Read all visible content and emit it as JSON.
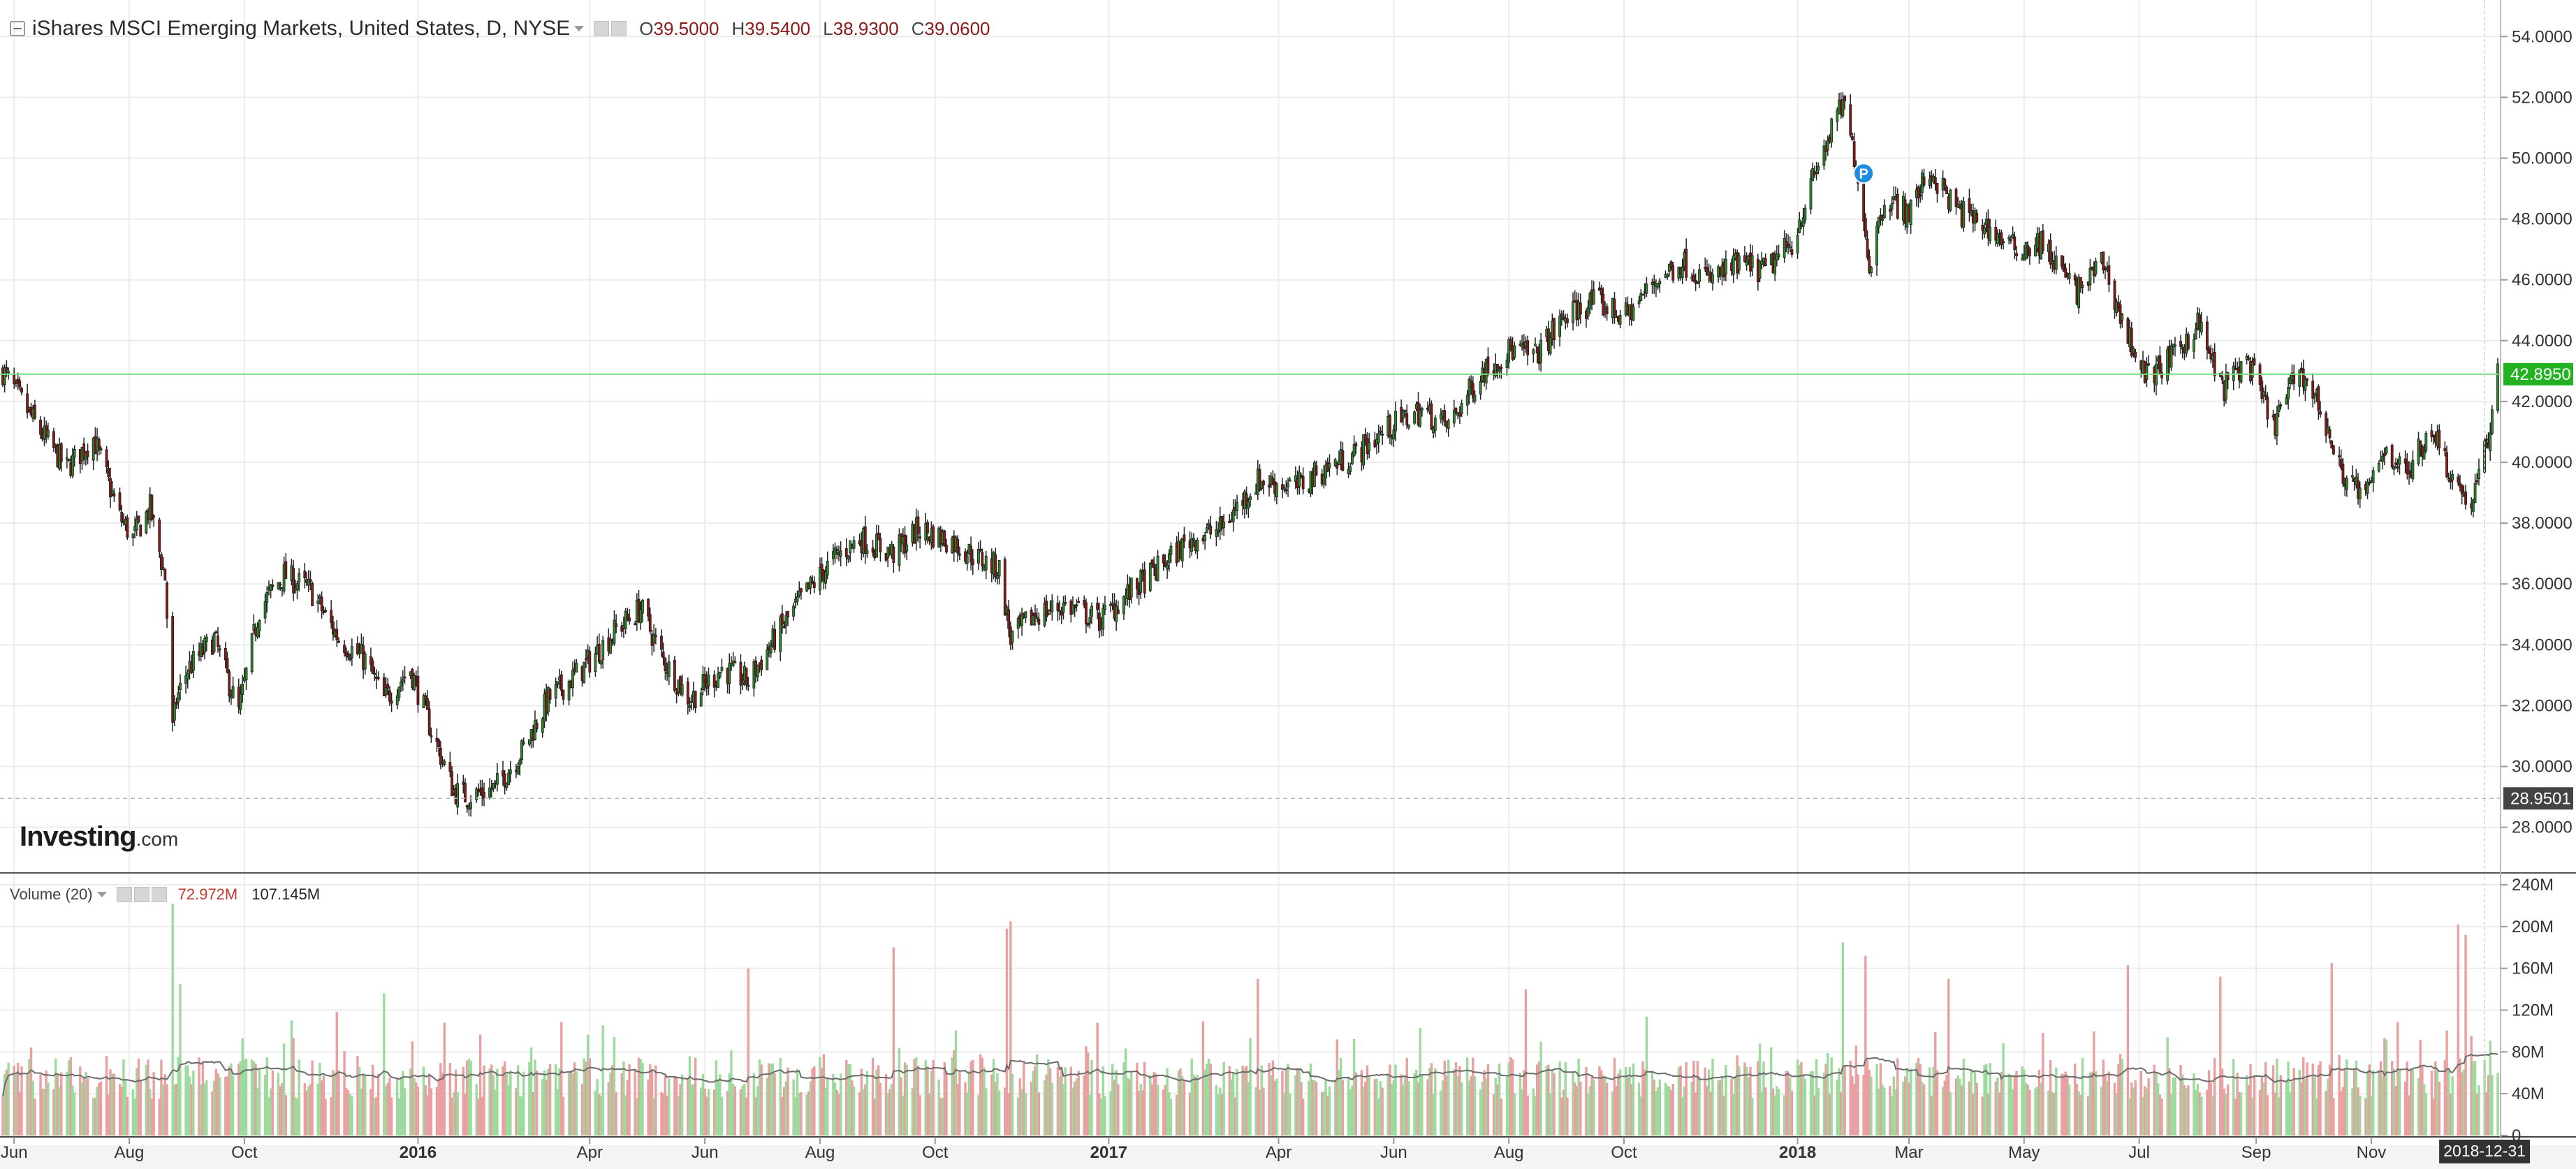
{
  "header": {
    "title": "iShares MSCI Emerging Markets, United States, D, NYSE",
    "open_label": "O",
    "open": "39.5000",
    "high_label": "H",
    "high": "39.5400",
    "low_label": "L",
    "low": "38.9300",
    "close_label": "C",
    "close": "39.0600"
  },
  "volume_panel": {
    "label": "Volume (20)",
    "value1": "72.972M",
    "value2": "107.145M"
  },
  "logo": {
    "main": "Investing",
    "suffix": ".com"
  },
  "colors": {
    "up": "#2e8b2e",
    "down": "#8b1a1a",
    "vol_up": "#9ed99e",
    "vol_down": "#e8a0a0",
    "last_price_line": "#7ddc7d",
    "last_price_tag": "#22b222",
    "low_tag": "#444444",
    "date_tag": "#333333",
    "event_marker": "#1f8ce0"
  },
  "chart_data": [
    {
      "type": "candlestick",
      "title": "iShares MSCI Emerging Markets, United States, D, NYSE",
      "ylim": [
        26.5,
        55.2
      ],
      "y_ticks": [
        "28.0000",
        "30.0000",
        "32.0000",
        "34.0000",
        "36.0000",
        "38.0000",
        "40.0000",
        "42.0000",
        "44.0000",
        "46.0000",
        "48.0000",
        "50.0000",
        "52.0000",
        "54.0000"
      ],
      "x_ticks": [
        "Jun",
        "Aug",
        "Oct",
        "2016",
        "Apr",
        "Jun",
        "Aug",
        "Oct",
        "2017",
        "Apr",
        "Jun",
        "Aug",
        "Oct",
        "2018",
        "Mar",
        "May",
        "Jul",
        "Sep",
        "Nov"
      ],
      "date_range": [
        "2015-05-26",
        "2019-01-07"
      ],
      "last_price": "42.8950",
      "low_marker": "28.9501",
      "crosshair_date": "2018-12-31",
      "event_marker": {
        "label": "P",
        "date": "2018-02-05",
        "value": 49.5
      },
      "price_path": [
        [
          "2015-05-26",
          43.0
        ],
        [
          "2015-06-15",
          41.0
        ],
        [
          "2015-06-29",
          39.8
        ],
        [
          "2015-07-13",
          40.8
        ],
        [
          "2015-07-27",
          38.2
        ],
        [
          "2015-08-03",
          37.5
        ],
        [
          "2015-08-12",
          38.5
        ],
        [
          "2015-08-20",
          36.2
        ],
        [
          "2015-08-24",
          31.2
        ],
        [
          "2015-08-26",
          32.2
        ],
        [
          "2015-09-01",
          33.2
        ],
        [
          "2015-09-15",
          34.2
        ],
        [
          "2015-09-28",
          31.8
        ],
        [
          "2015-10-09",
          35.2
        ],
        [
          "2015-10-22",
          36.3
        ],
        [
          "2015-11-05",
          35.8
        ],
        [
          "2015-11-20",
          34.2
        ],
        [
          "2015-12-04",
          33.5
        ],
        [
          "2015-12-14",
          32.2
        ],
        [
          "2015-12-28",
          33.2
        ],
        [
          "2016-01-08",
          31.2
        ],
        [
          "2016-01-20",
          29.2
        ],
        [
          "2016-01-27",
          29.0
        ],
        [
          "2016-02-11",
          29.3
        ],
        [
          "2016-02-25",
          30.5
        ],
        [
          "2016-03-10",
          32.2
        ],
        [
          "2016-03-28",
          33.2
        ],
        [
          "2016-04-15",
          34.5
        ],
        [
          "2016-04-28",
          35.2
        ],
        [
          "2016-05-10",
          33.5
        ],
        [
          "2016-05-24",
          32.2
        ],
        [
          "2016-06-10",
          33.2
        ],
        [
          "2016-06-24",
          32.8
        ],
        [
          "2016-07-08",
          34.2
        ],
        [
          "2016-07-22",
          35.5
        ],
        [
          "2016-08-08",
          36.8
        ],
        [
          "2016-08-22",
          37.5
        ],
        [
          "2016-09-09",
          37.0
        ],
        [
          "2016-09-22",
          37.8
        ],
        [
          "2016-10-10",
          37.4
        ],
        [
          "2016-10-25",
          36.8
        ],
        [
          "2016-11-04",
          36.5
        ],
        [
          "2016-11-10",
          34.2
        ],
        [
          "2016-11-23",
          35.0
        ],
        [
          "2016-12-09",
          35.3
        ],
        [
          "2016-12-27",
          34.8
        ],
        [
          "2017-01-10",
          35.6
        ],
        [
          "2017-01-27",
          36.5
        ],
        [
          "2017-02-14",
          37.5
        ],
        [
          "2017-03-01",
          37.8
        ],
        [
          "2017-03-21",
          39.4
        ],
        [
          "2017-04-11",
          39.2
        ],
        [
          "2017-04-26",
          39.8
        ],
        [
          "2017-05-12",
          40.3
        ],
        [
          "2017-05-31",
          41.2
        ],
        [
          "2017-06-15",
          41.7
        ],
        [
          "2017-06-30",
          41.2
        ],
        [
          "2017-07-18",
          43.0
        ],
        [
          "2017-08-02",
          43.7
        ],
        [
          "2017-08-15",
          43.5
        ],
        [
          "2017-08-31",
          44.8
        ],
        [
          "2017-09-15",
          45.3
        ],
        [
          "2017-10-02",
          44.8
        ],
        [
          "2017-10-18",
          46.0
        ],
        [
          "2017-11-01",
          46.6
        ],
        [
          "2017-11-15",
          46.0
        ],
        [
          "2017-12-01",
          46.5
        ],
        [
          "2017-12-15",
          46.3
        ],
        [
          "2017-12-29",
          47.2
        ],
        [
          "2018-01-12",
          49.8
        ],
        [
          "2018-01-25",
          51.8
        ],
        [
          "2018-02-02",
          49.5
        ],
        [
          "2018-02-08",
          46.5
        ],
        [
          "2018-02-16",
          48.7
        ],
        [
          "2018-03-01",
          48.2
        ],
        [
          "2018-03-12",
          49.6
        ],
        [
          "2018-03-26",
          48.3
        ],
        [
          "2018-04-10",
          47.8
        ],
        [
          "2018-04-26",
          47.0
        ],
        [
          "2018-05-10",
          47.2
        ],
        [
          "2018-05-29",
          45.6
        ],
        [
          "2018-06-12",
          46.6
        ],
        [
          "2018-06-22",
          44.6
        ],
        [
          "2018-07-05",
          42.8
        ],
        [
          "2018-07-20",
          43.5
        ],
        [
          "2018-08-01",
          44.6
        ],
        [
          "2018-08-14",
          42.4
        ],
        [
          "2018-08-27",
          43.4
        ],
        [
          "2018-09-10",
          41.2
        ],
        [
          "2018-09-24",
          43.1
        ],
        [
          "2018-10-05",
          41.8
        ],
        [
          "2018-10-15",
          39.8
        ],
        [
          "2018-10-29",
          38.8
        ],
        [
          "2018-11-08",
          40.5
        ],
        [
          "2018-11-20",
          39.6
        ],
        [
          "2018-12-03",
          41.2
        ],
        [
          "2018-12-14",
          39.5
        ],
        [
          "2018-12-24",
          38.6
        ],
        [
          "2019-01-02",
          40.8
        ],
        [
          "2019-01-07",
          42.9
        ]
      ]
    },
    {
      "type": "bar",
      "title": "Volume (20)",
      "ylim": [
        0,
        240
      ],
      "y_ticks": [
        "0",
        "40M",
        "80M",
        "120M",
        "160M",
        "200M",
        "240M"
      ],
      "unit": "M",
      "moving_average_period": 20,
      "spikes": [
        [
          "2015-08-24",
          222,
          "up"
        ],
        [
          "2015-08-28",
          145,
          "up"
        ],
        [
          "2016-01-15",
          108,
          "down"
        ],
        [
          "2016-11-10",
          205,
          "down"
        ],
        [
          "2016-11-08",
          198,
          "down"
        ],
        [
          "2017-03-21",
          150,
          "down"
        ],
        [
          "2018-01-25",
          185,
          "up"
        ],
        [
          "2018-02-06",
          172,
          "down"
        ],
        [
          "2018-10-11",
          165,
          "down"
        ],
        [
          "2018-12-17",
          202,
          "down"
        ],
        [
          "2018-12-21",
          192,
          "down"
        ],
        [
          "2016-06-24",
          160,
          "down"
        ],
        [
          "2016-09-09",
          180,
          "down"
        ],
        [
          "2015-12-14",
          136,
          "up"
        ],
        [
          "2018-06-25",
          163,
          "down"
        ],
        [
          "2018-03-22",
          150,
          "down"
        ],
        [
          "2017-08-10",
          140,
          "down"
        ],
        [
          "2018-08-13",
          152,
          "down"
        ]
      ],
      "baseline_range": [
        35,
        75
      ]
    }
  ]
}
